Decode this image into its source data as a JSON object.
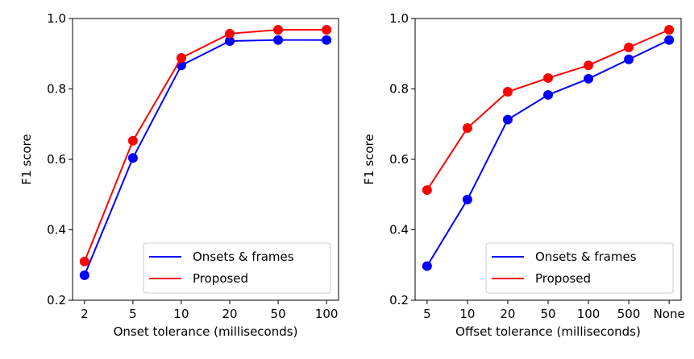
{
  "chart_data": [
    {
      "type": "line",
      "title": "",
      "xlabel": "Onset tolerance (milliseconds)",
      "ylabel": "F1 score",
      "categories": [
        "2",
        "5",
        "10",
        "20",
        "50",
        "100"
      ],
      "ylim": [
        0.2,
        1.0
      ],
      "yticks": [
        "0.2",
        "0.4",
        "0.6",
        "0.8",
        "1.0"
      ],
      "grid": false,
      "legend_position": "bottom-right",
      "series": [
        {
          "name": "Onsets & frames",
          "color": "#0000ff",
          "values": [
            0.271,
            0.604,
            0.867,
            0.936,
            0.939,
            0.939
          ]
        },
        {
          "name": "Proposed",
          "color": "#ff0000",
          "values": [
            0.31,
            0.653,
            0.888,
            0.957,
            0.968,
            0.968
          ]
        }
      ]
    },
    {
      "type": "line",
      "title": "",
      "xlabel": "Offset tolerance (milliseconds)",
      "ylabel": "F1 score",
      "categories": [
        "5",
        "10",
        "20",
        "50",
        "100",
        "500",
        "None"
      ],
      "ylim": [
        0.2,
        1.0
      ],
      "yticks": [
        "0.2",
        "0.4",
        "0.6",
        "0.8",
        "1.0"
      ],
      "grid": false,
      "legend_position": "bottom-right",
      "series": [
        {
          "name": "Onsets & frames",
          "color": "#0000ff",
          "values": [
            0.297,
            0.486,
            0.713,
            0.783,
            0.829,
            0.884,
            0.939
          ]
        },
        {
          "name": "Proposed",
          "color": "#ff0000",
          "values": [
            0.513,
            0.689,
            0.792,
            0.831,
            0.867,
            0.918,
            0.968
          ]
        }
      ]
    }
  ]
}
